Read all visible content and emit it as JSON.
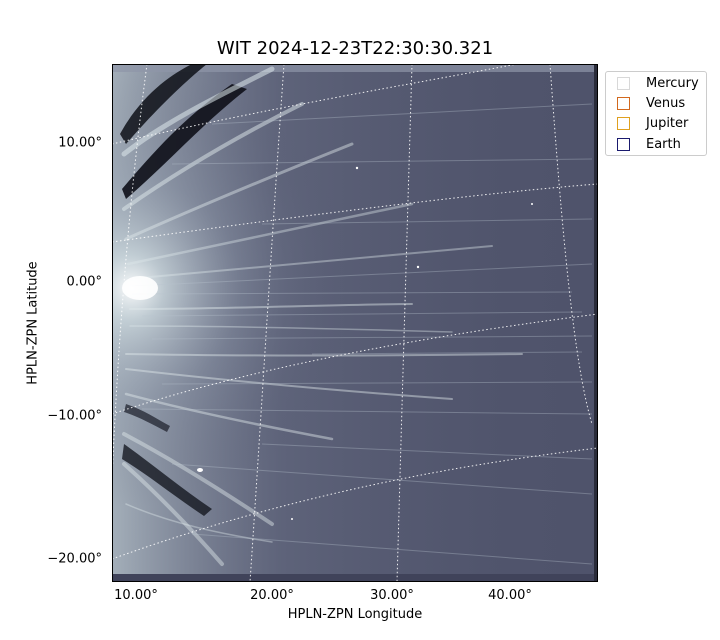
{
  "figure": {
    "title": "WIT 2024-12-23T22:30:30.321",
    "xlabel": "HPLN-ZPN Longitude",
    "ylabel": "HPLN-ZPN Latitude"
  },
  "x_ticks": [
    "10.00°",
    "20.00°",
    "30.00°",
    "40.00°"
  ],
  "y_ticks": [
    "10.00°",
    "0.00°",
    "−10.00°",
    "−20.00°"
  ],
  "legend": [
    {
      "label": "Mercury",
      "color": "#d8d8d8"
    },
    {
      "label": "Venus",
      "color": "#d2691e"
    },
    {
      "label": "Jupiter",
      "color": "#e0a020"
    },
    {
      "label": "Earth",
      "color": "#1a1a6e"
    }
  ],
  "image_colors": {
    "background": "#4f536b",
    "streamer": "#d9e6ea",
    "grid": "#ffffff"
  }
}
